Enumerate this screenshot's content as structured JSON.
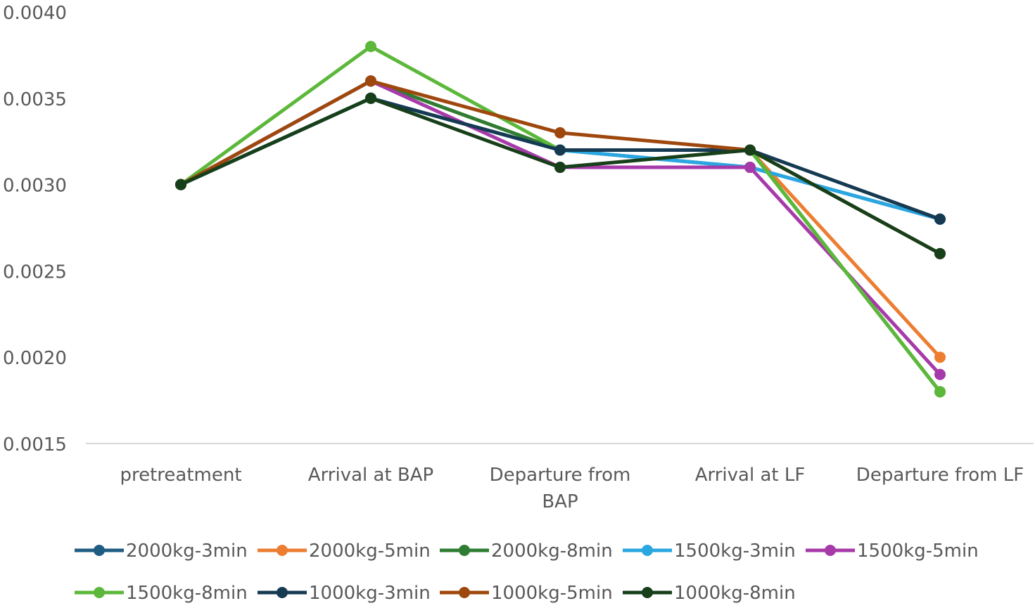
{
  "chart_data": {
    "type": "line",
    "title": "",
    "xlabel": "",
    "ylabel": "",
    "categories": [
      [
        "pretreatment"
      ],
      [
        "Arrival at BAP"
      ],
      [
        "Departure from",
        "BAP"
      ],
      [
        "Arrival at LF"
      ],
      [
        "Departure from LF"
      ]
    ],
    "ylim": [
      0.0015,
      0.004
    ],
    "yticks": [
      "0.0015",
      "0.0020",
      "0.0025",
      "0.0030",
      "0.0035",
      "0.0040"
    ],
    "grid": false,
    "legend": "bottom",
    "series": [
      {
        "name": "2000kg-3min",
        "color": "#1f5c82",
        "values": [
          0.003,
          0.0035,
          0.0032,
          0.0031,
          0.0028
        ]
      },
      {
        "name": "2000kg-5min",
        "color": "#ed7d31",
        "values": [
          0.003,
          0.0036,
          0.0032,
          0.0032,
          0.002
        ]
      },
      {
        "name": "2000kg-8min",
        "color": "#2e7d32",
        "values": [
          0.003,
          0.0036,
          0.0032,
          0.0032,
          0.0018
        ]
      },
      {
        "name": "1500kg-3min",
        "color": "#2aa7e0",
        "values": [
          0.003,
          0.0035,
          0.0032,
          0.0031,
          0.0028
        ]
      },
      {
        "name": "1500kg-5min",
        "color": "#a73aa9",
        "values": [
          0.003,
          0.0036,
          0.0031,
          0.0031,
          0.0019
        ]
      },
      {
        "name": "1500kg-8min",
        "color": "#5cb83a",
        "values": [
          0.003,
          0.0038,
          0.0032,
          0.0032,
          0.0018
        ]
      },
      {
        "name": "1000kg-3min",
        "color": "#153a52",
        "values": [
          0.003,
          0.0035,
          0.0032,
          0.0032,
          0.0028
        ]
      },
      {
        "name": "1000kg-5min",
        "color": "#9e480e",
        "values": [
          0.003,
          0.0036,
          0.0033,
          0.0032,
          0.0026
        ]
      },
      {
        "name": "1000kg-8min",
        "color": "#173f1a",
        "values": [
          0.003,
          0.0035,
          0.0031,
          0.0032,
          0.0026
        ]
      }
    ]
  },
  "colors": {
    "axis": "#d9d9d9",
    "text": "#595959",
    "background": "#ffffff"
  }
}
